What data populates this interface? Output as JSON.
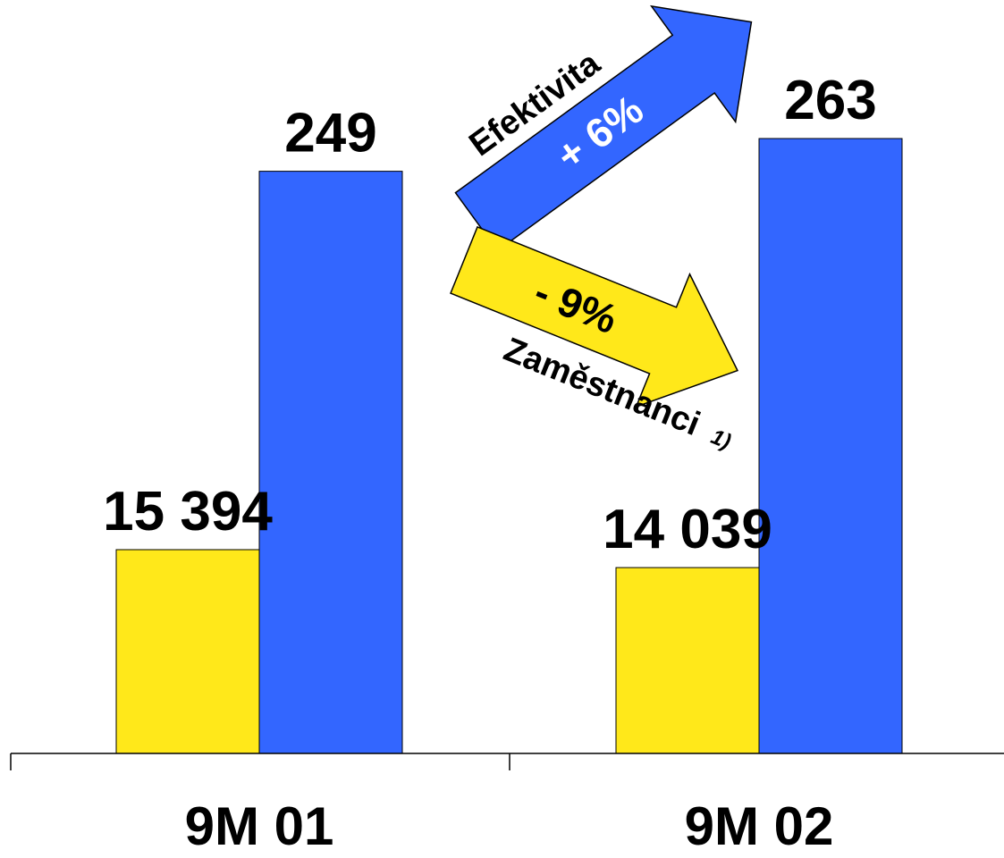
{
  "chart_data": {
    "type": "bar",
    "categories": [
      "9M 01",
      "9M 02"
    ],
    "series": [
      {
        "values": [
          15394,
          14039
        ],
        "labels": [
          "15 394",
          "14 039"
        ],
        "color": "#FFE81A"
      },
      {
        "values": [
          249,
          263
        ],
        "labels": [
          "249",
          "263"
        ],
        "color": "#3366FF"
      }
    ],
    "annotations": {
      "up_arrow": {
        "caption": "Efektivita",
        "change": "+ 6%",
        "color": "#3366FF",
        "text_color": "#FFFFFF"
      },
      "down_arrow": {
        "caption": "Zaměstnanci",
        "footnote": "1)",
        "change": "- 9%",
        "color": "#FFE81A",
        "text_color": "#000000"
      }
    },
    "grid": false,
    "legend": "none"
  }
}
